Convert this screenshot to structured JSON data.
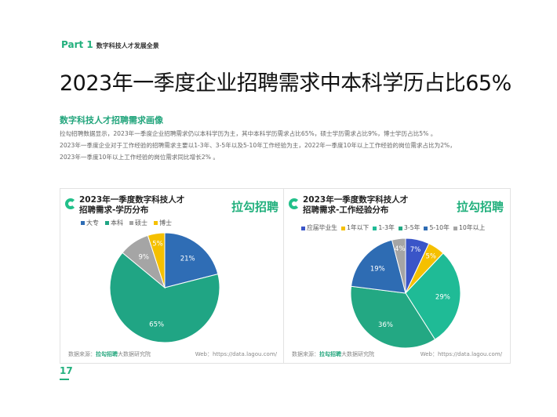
{
  "header": {
    "part": "Part 1",
    "part_title": "数字科技人才发展全景"
  },
  "title": "2023年一季度企业招聘需求中本科学历占比65%",
  "section_title": "数字科技人才招聘需求画像",
  "paragraph": [
    "拉勾招聘数据显示，2023年一季度企业招聘需求仍以本科学历为主，其中本科学历需求占比65%，硕士学历需求占比9%，博士学历占比5% 。",
    "2023年一季度企业对于工作经验的招聘需求主要以1-3年、3-5年以及5-10年工作经验为主，2022年一季度10年以上工作经验的岗位需求占比为2%，",
    "2023年一季度10年以上工作经验的岗位需求同比增长2% 。"
  ],
  "footer": {
    "source_label": "数据来源：",
    "source_brand": "拉勾招聘",
    "source_suffix": "大数据研究院",
    "web": "Web：https://data.lagou.com/"
  },
  "brand": "拉勾招聘",
  "page_number": "17",
  "chart_data": [
    {
      "type": "pie",
      "title_line1": "2023年一季度数字科技人才",
      "title_line2": "招聘需求-学历分布",
      "categories": [
        "大专",
        "本科",
        "硕士",
        "博士"
      ],
      "values": [
        21,
        65,
        9,
        5
      ],
      "labels": [
        "21%",
        "65%",
        "9%",
        "5%"
      ],
      "colors": [
        "#2f6db5",
        "#20a584",
        "#a5a5a5",
        "#f5c000"
      ]
    },
    {
      "type": "pie",
      "title_line1": "2023年一季度数字科技人才",
      "title_line2": "招聘需求-工作经验分布",
      "categories": [
        "应届毕业生",
        "1年以下",
        "1-3年",
        "3-5年",
        "5-10年",
        "10年以上"
      ],
      "values": [
        7,
        5,
        29,
        36,
        19,
        4
      ],
      "labels": [
        "7%",
        "5%",
        "29%",
        "36%",
        "19%",
        "4%"
      ],
      "colors": [
        "#3a55c8",
        "#f5c000",
        "#1fbb96",
        "#23a883",
        "#2e6cb3",
        "#a5a5a5"
      ]
    }
  ]
}
